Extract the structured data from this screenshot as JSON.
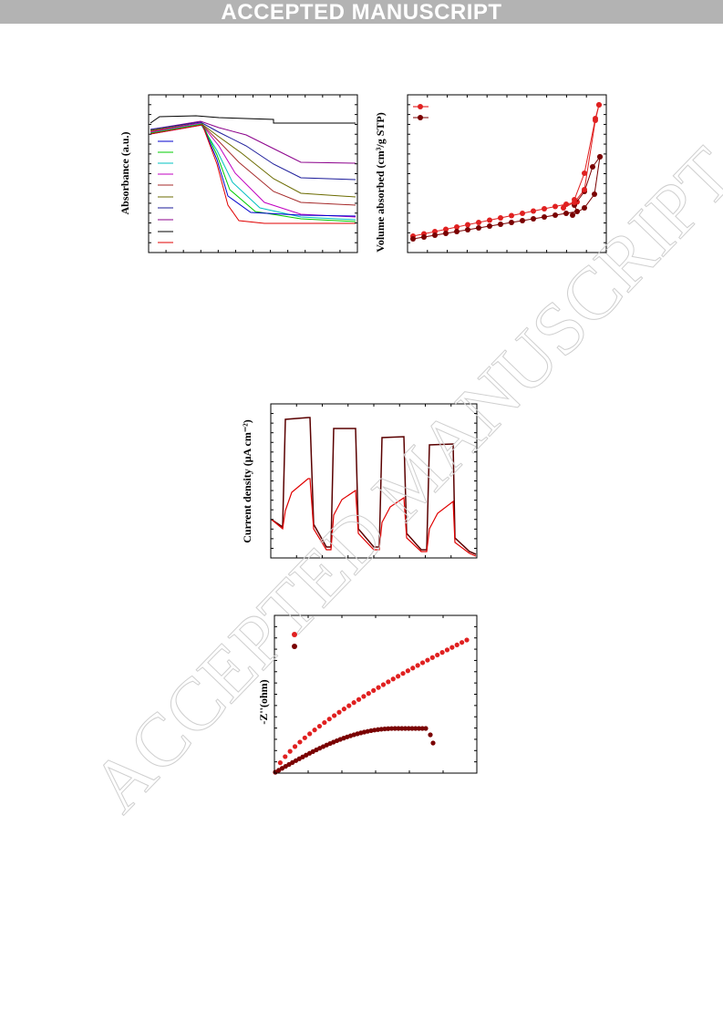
{
  "header": {
    "banner": "ACCEPTED MANUSCRIPT"
  },
  "figures": [
    {
      "y_label": "Absorbance (a.u.)"
    },
    {
      "y_label": "Volume absorbed (cm³/g STP)"
    },
    {
      "y_label": "Current density (μA cm⁻²)"
    },
    {
      "y_label": "-Z''(ohm)"
    }
  ],
  "watermark": "ACCEPTED MANUSCRIPT"
}
